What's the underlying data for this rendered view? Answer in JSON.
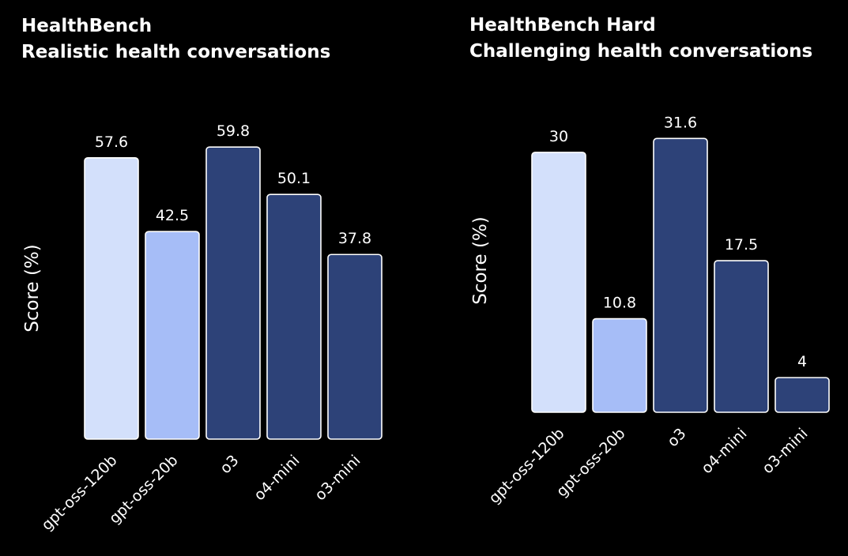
{
  "chart_data": [
    {
      "type": "bar",
      "title": "HealthBench",
      "subtitle": "Realistic health conversations",
      "ylabel": "Score (%)",
      "xlabel": "",
      "categories": [
        "gpt-oss-120b",
        "gpt-oss-20b",
        "o3",
        "o4-mini",
        "o3-mini"
      ],
      "values": [
        57.6,
        42.5,
        59.8,
        50.1,
        37.8
      ],
      "value_labels": [
        "57.6",
        "42.5",
        "59.8",
        "50.1",
        "37.8"
      ],
      "colors": [
        "#d3e0fb",
        "#a6bdf7",
        "#2d4278",
        "#2d4278",
        "#2d4278"
      ],
      "ylim": [
        0,
        60
      ],
      "grid": false,
      "legend": "none"
    },
    {
      "type": "bar",
      "title": "HealthBench Hard",
      "subtitle": "Challenging health conversations",
      "ylabel": "Score (%)",
      "xlabel": "",
      "categories": [
        "gpt-oss-120b",
        "gpt-oss-20b",
        "o3",
        "o4-mini",
        "o3-mini"
      ],
      "values": [
        30,
        10.8,
        31.6,
        17.5,
        4
      ],
      "value_labels": [
        "30",
        "10.8",
        "31.6",
        "17.5",
        "4"
      ],
      "colors": [
        "#d3e0fb",
        "#a6bdf7",
        "#2d4278",
        "#2d4278",
        "#2d4278"
      ],
      "ylim": [
        0,
        32
      ],
      "grid": false,
      "legend": "none"
    }
  ]
}
